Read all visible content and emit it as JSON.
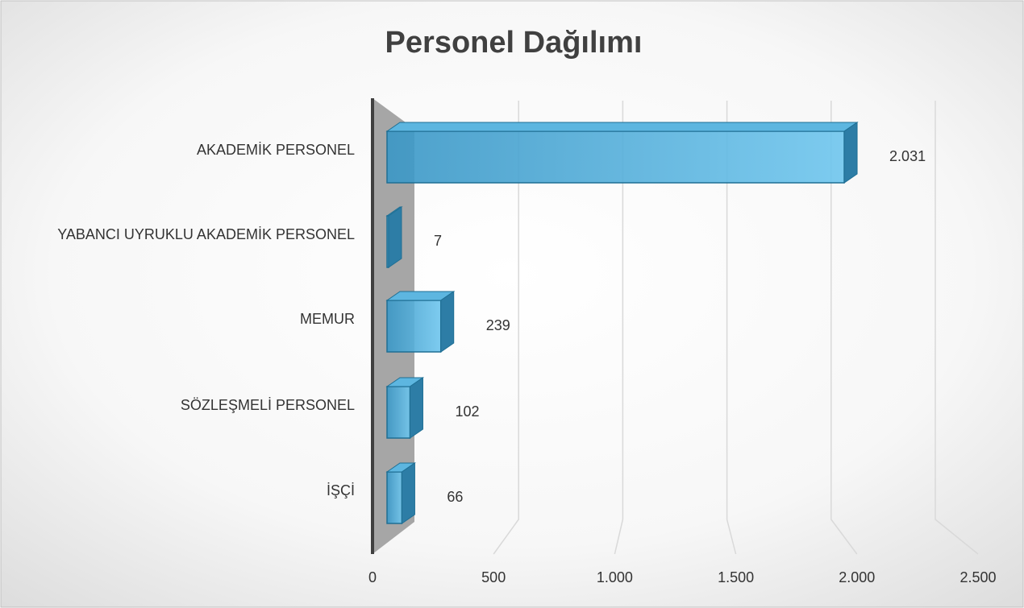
{
  "chart_data": {
    "type": "bar3d_horizontal",
    "title": "Personel Dağılımı",
    "categories": [
      "AKADEMİK PERSONEL",
      "YABANCI UYRUKLU AKADEMİK PERSONEL",
      "MEMUR",
      "SÖZLEŞMELİ PERSONEL",
      "İŞÇİ"
    ],
    "values": [
      2031,
      7,
      239,
      102,
      66
    ],
    "value_labels": [
      "2.031",
      "7",
      "239",
      "102",
      "66"
    ],
    "color": "#4aa8d8",
    "xlim": [
      0,
      2500
    ],
    "xticks": [
      0,
      500,
      {
        "value": 1000,
        "label": "1.000"
      },
      {
        "value": 1500,
        "label": "1.500"
      },
      {
        "value": 2000,
        "label": "2.000"
      },
      {
        "value": 2500,
        "label": "2.500"
      }
    ],
    "grid": true
  }
}
